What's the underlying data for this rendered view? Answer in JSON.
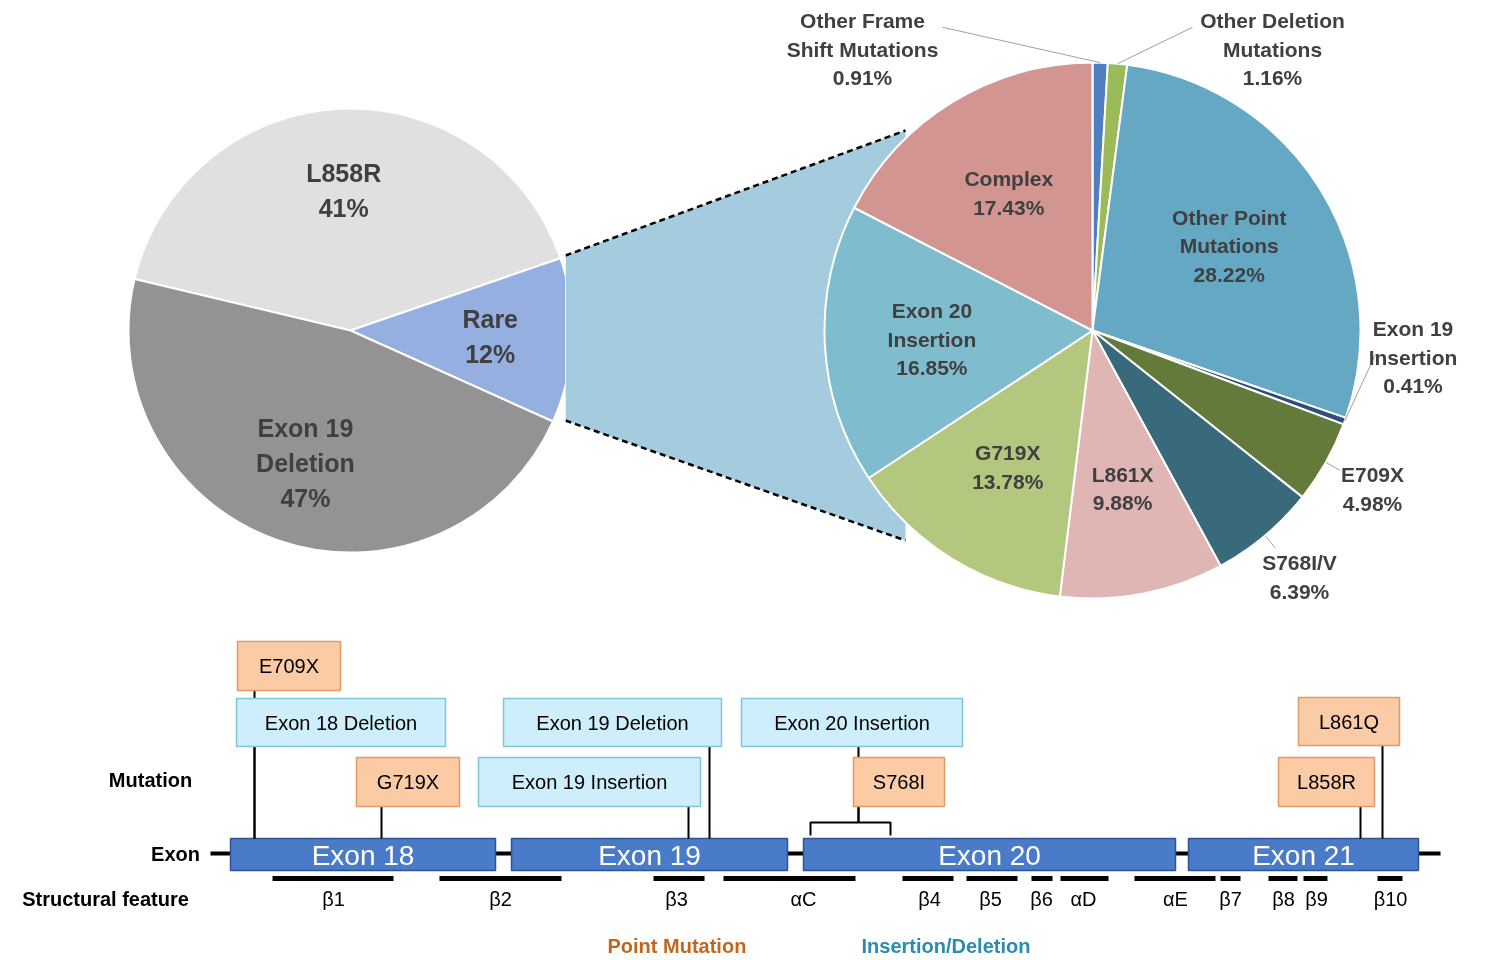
{
  "chart_data": [
    {
      "type": "pie",
      "categories": [
        "L858R",
        "Rare",
        "Exon 19 Deletion"
      ],
      "values": [
        41,
        12,
        47
      ],
      "colors": [
        "#e0e0e0",
        "#94afe0",
        "#939393"
      ],
      "value_labels": [
        "41%",
        "12%",
        "47%"
      ]
    },
    {
      "type": "pie",
      "categories": [
        "Other Frame Shift Mutations",
        "Other Deletion Mutations",
        "Other Point Mutations",
        "Exon 19 Insertion",
        "E709X",
        "S768I/V",
        "L861X",
        "G719X",
        "Exon 20 Insertion",
        "Complex"
      ],
      "values": [
        0.91,
        1.16,
        28.22,
        0.41,
        4.98,
        6.39,
        9.88,
        13.78,
        16.85,
        17.43
      ],
      "colors": [
        "#4f7fc0",
        "#9bbb59",
        "#64a8c4",
        "#2f4e7a",
        "#647a3a",
        "#386a7b",
        "#e0b6b4",
        "#b3c77f",
        "#7fbccd",
        "#d39591"
      ],
      "value_labels": [
        "0.91%",
        "1.16%",
        "28.22%",
        "0.41%",
        "4.98%",
        "6.39%",
        "9.88%",
        "13.78%",
        "16.85%",
        "17.43%"
      ]
    },
    {
      "type": "other",
      "annotations": [
        "Mutation",
        "Exon",
        "Structural feature",
        "Exon 18",
        "Exon 19",
        "Exon 20",
        "Exon 21",
        "E709X",
        "Exon 18 Deletion",
        "G719X",
        "Exon 19 Deletion",
        "Exon 19 Insertion",
        "Exon 20 Insertion",
        "S768I",
        "L861Q",
        "L858R",
        "β1",
        "β2",
        "β3",
        "αC",
        "β4",
        "β5",
        "β6",
        "αD",
        "αE",
        "β7",
        "β8",
        "β9",
        "β10",
        "Point Mutation",
        "Insertion/Deletion"
      ]
    }
  ]
}
